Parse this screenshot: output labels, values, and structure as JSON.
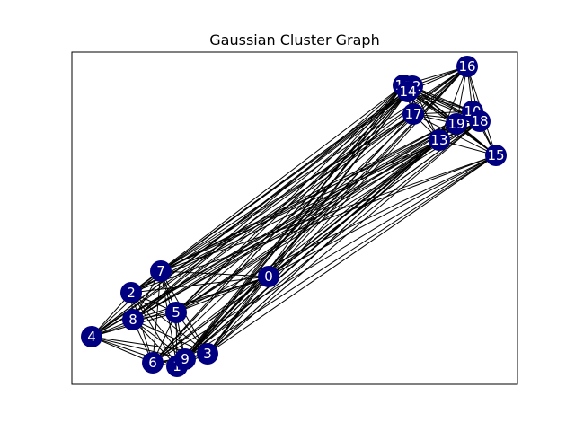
{
  "title": "Gaussian Cluster Graph",
  "colors": {
    "node_fill": "#000080",
    "node_label": "#ffffff",
    "edge": "#000000",
    "frame": "#000000"
  },
  "nodes": [
    {
      "id": 0,
      "label": "0"
    },
    {
      "id": 1,
      "label": "1"
    },
    {
      "id": 2,
      "label": "2"
    },
    {
      "id": 3,
      "label": "3"
    },
    {
      "id": 4,
      "label": "4"
    },
    {
      "id": 5,
      "label": "5"
    },
    {
      "id": 6,
      "label": "6"
    },
    {
      "id": 7,
      "label": "7"
    },
    {
      "id": 8,
      "label": "8"
    },
    {
      "id": 9,
      "label": "9"
    },
    {
      "id": 10,
      "label": "10"
    },
    {
      "id": 11,
      "label": "11"
    },
    {
      "id": 12,
      "label": "12"
    },
    {
      "id": 13,
      "label": "13"
    },
    {
      "id": 14,
      "label": "14"
    },
    {
      "id": 15,
      "label": "15"
    },
    {
      "id": 16,
      "label": "16"
    },
    {
      "id": 17,
      "label": "17"
    },
    {
      "id": 18,
      "label": "18"
    },
    {
      "id": 19,
      "label": "19"
    }
  ]
}
